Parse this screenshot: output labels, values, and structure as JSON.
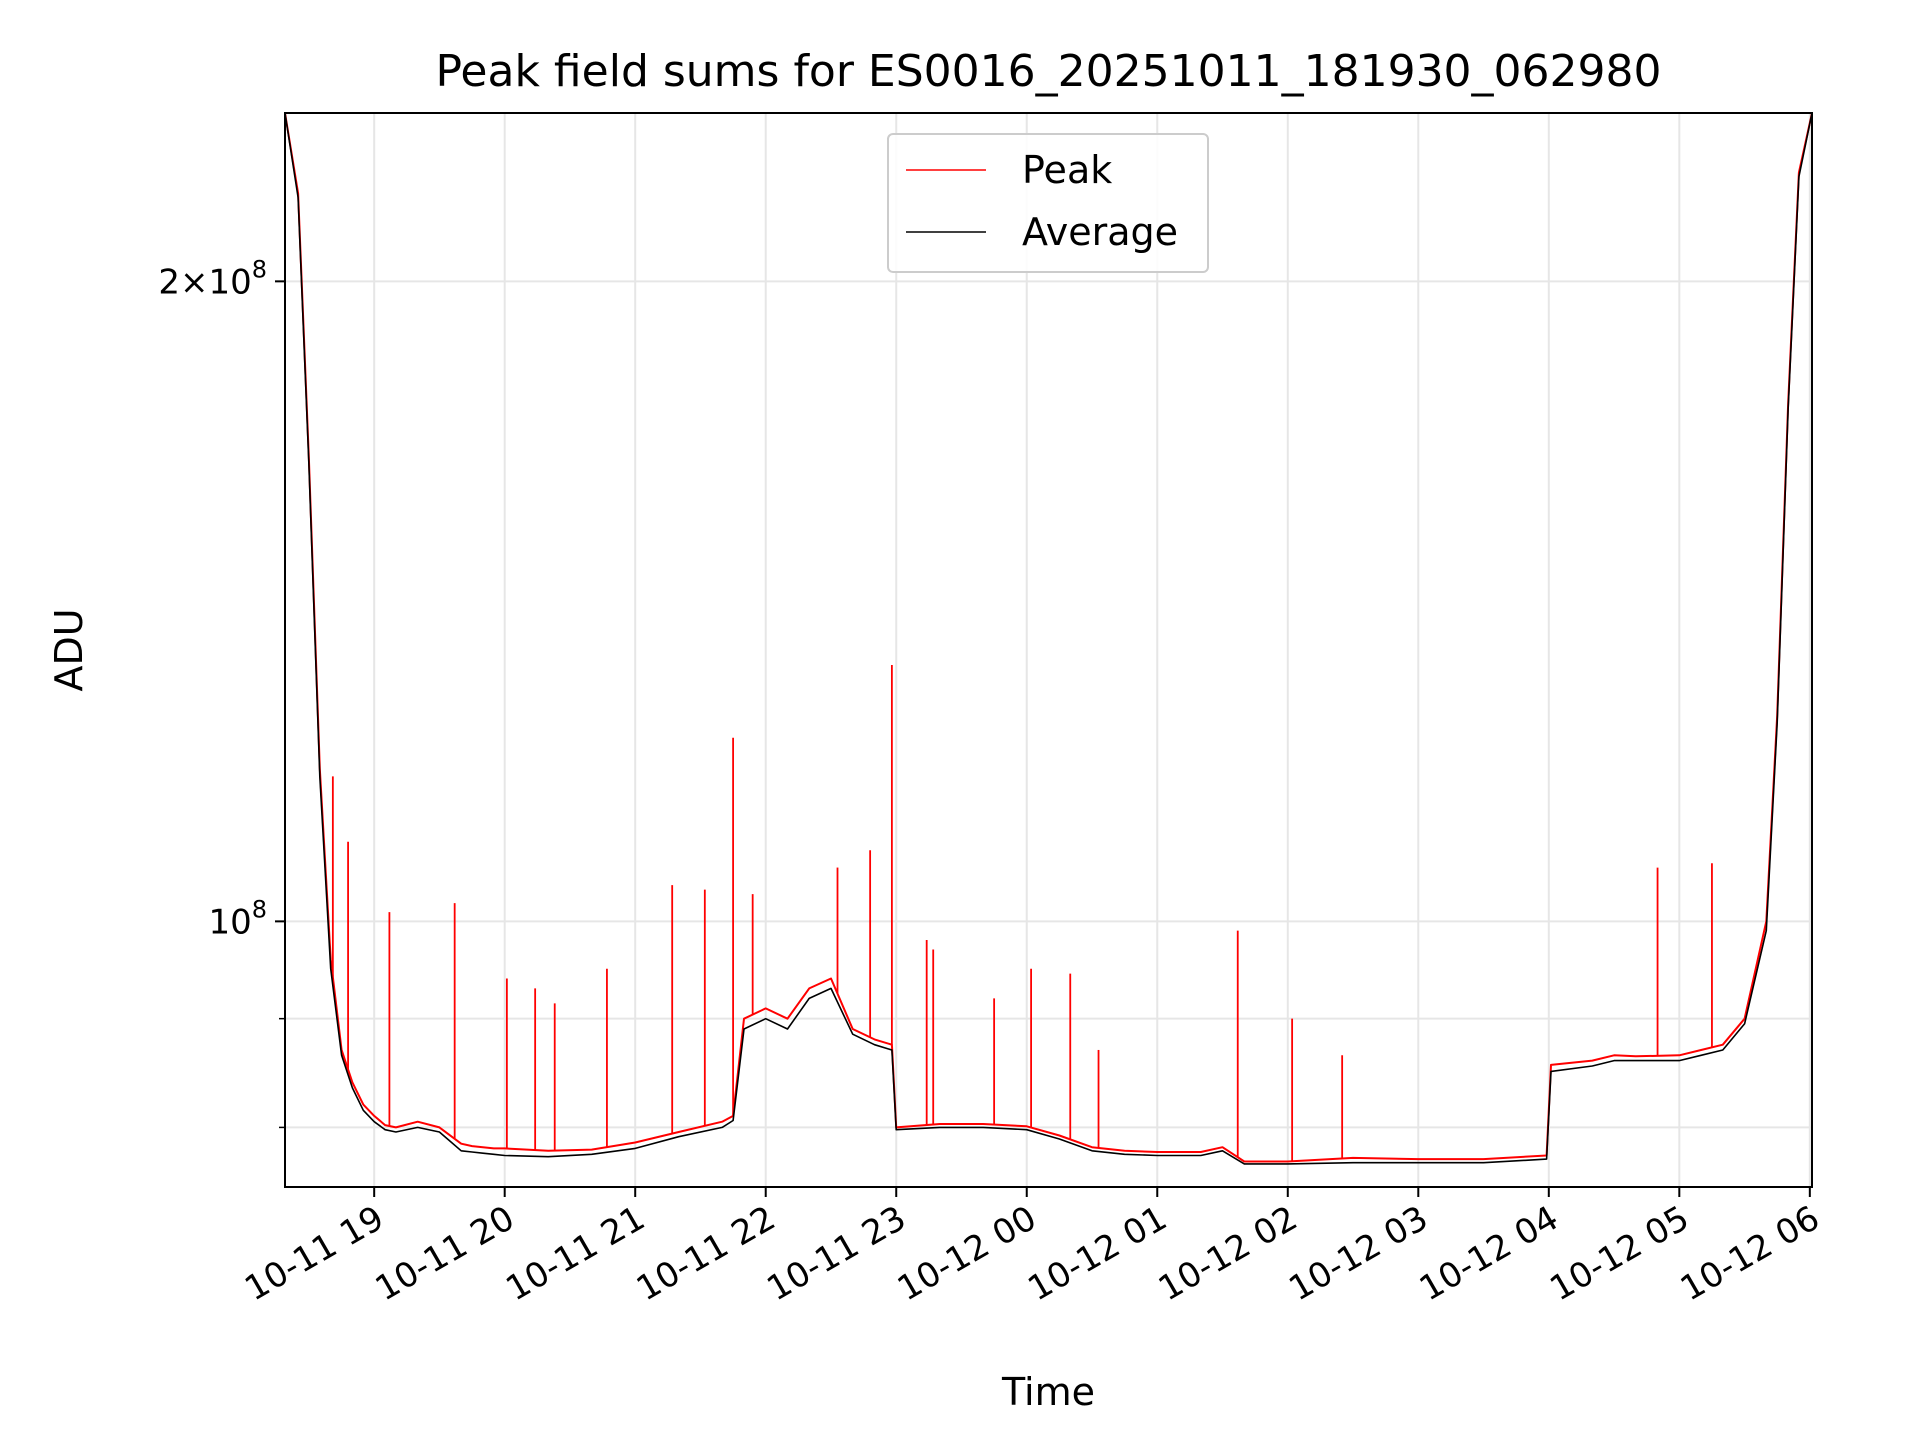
{
  "chart_data": {
    "type": "line",
    "title": "Peak field sums for ES0016_20251011_181930_062980",
    "xlabel": "Time",
    "ylabel": "ADU",
    "yscale": "log",
    "grid": true,
    "legend_position": "upper-center",
    "x_ticks": [
      "10-11 19",
      "10-11 20",
      "10-11 21",
      "10-11 22",
      "10-11 23",
      "10-12 00",
      "10-12 01",
      "10-12 02",
      "10-12 03",
      "10-12 04",
      "10-12 05",
      "10-12 06"
    ],
    "y_ticks": [
      {
        "value": 100000000,
        "base": "10",
        "exp": "8",
        "prefix": ""
      },
      {
        "value": 200000000,
        "base": "10",
        "exp": "8",
        "prefix": "2×"
      }
    ],
    "xlim": [
      "2025-10-11 18:19",
      "2025-10-12 06:01"
    ],
    "ylim": [
      75000000,
      240000000
    ],
    "series": [
      {
        "name": "Peak",
        "color": "#ff0000",
        "x": [
          "2025-10-11 18:19",
          "2025-10-11 18:25",
          "2025-10-11 18:30",
          "2025-10-11 18:35",
          "2025-10-11 18:40",
          "2025-10-11 18:45",
          "2025-10-11 18:50",
          "2025-10-11 18:55",
          "2025-10-11 19:00",
          "2025-10-11 19:05",
          "2025-10-11 19:10",
          "2025-10-11 19:20",
          "2025-10-11 19:30",
          "2025-10-11 19:40",
          "2025-10-11 19:45",
          "2025-10-11 19:50",
          "2025-10-11 19:55",
          "2025-10-11 20:00",
          "2025-10-11 20:20",
          "2025-10-11 20:40",
          "2025-10-11 21:00",
          "2025-10-11 21:20",
          "2025-10-11 21:40",
          "2025-10-11 21:45",
          "2025-10-11 21:50",
          "2025-10-11 22:00",
          "2025-10-11 22:10",
          "2025-10-11 22:20",
          "2025-10-11 22:30",
          "2025-10-11 22:40",
          "2025-10-11 22:50",
          "2025-10-11 22:58",
          "2025-10-11 23:00",
          "2025-10-11 23:20",
          "2025-10-11 23:40",
          "2025-10-12 00:00",
          "2025-10-12 00:15",
          "2025-10-12 00:30",
          "2025-10-12 00:45",
          "2025-10-12 01:00",
          "2025-10-12 01:20",
          "2025-10-12 01:30",
          "2025-10-12 01:40",
          "2025-10-12 02:00",
          "2025-10-12 02:30",
          "2025-10-12 03:00",
          "2025-10-12 03:30",
          "2025-10-12 03:59",
          "2025-10-12 04:01",
          "2025-10-12 04:20",
          "2025-10-12 04:30",
          "2025-10-12 04:40",
          "2025-10-12 05:00",
          "2025-10-12 05:10",
          "2025-10-12 05:20",
          "2025-10-12 05:30",
          "2025-10-12 05:40",
          "2025-10-12 05:45",
          "2025-10-12 05:50",
          "2025-10-12 05:55",
          "2025-10-12 06:01"
        ],
        "y": [
          240000000,
          220000000,
          165000000,
          118000000,
          96000000,
          87000000,
          84000000,
          82000000,
          81000000,
          80200000,
          80000000,
          80500000,
          80000000,
          78600000,
          78400000,
          78300000,
          78200000,
          78200000,
          78000000,
          78100000,
          78700000,
          79600000,
          80500000,
          81000000,
          90000000,
          91000000,
          90000000,
          93000000,
          94000000,
          89000000,
          88000000,
          87500000,
          80000000,
          80300000,
          80300000,
          80100000,
          79300000,
          78300000,
          78000000,
          77900000,
          77900000,
          78300000,
          77100000,
          77100000,
          77400000,
          77300000,
          77300000,
          77600000,
          85600000,
          86000000,
          86500000,
          86400000,
          86500000,
          87000000,
          87500000,
          90000000,
          100000000,
          125000000,
          175000000,
          225000000,
          240000000
        ],
        "spikes": [
          {
            "x": "2025-10-11 18:41",
            "y": 117000000
          },
          {
            "x": "2025-10-11 18:48",
            "y": 109000000
          },
          {
            "x": "2025-10-11 19:07",
            "y": 101000000
          },
          {
            "x": "2025-10-11 19:37",
            "y": 102000000
          },
          {
            "x": "2025-10-11 20:01",
            "y": 94000000
          },
          {
            "x": "2025-10-11 20:14",
            "y": 93000000
          },
          {
            "x": "2025-10-11 20:23",
            "y": 91500000
          },
          {
            "x": "2025-10-11 20:47",
            "y": 95000000
          },
          {
            "x": "2025-10-11 21:17",
            "y": 104000000
          },
          {
            "x": "2025-10-11 21:32",
            "y": 103500000
          },
          {
            "x": "2025-10-11 21:45",
            "y": 122000000
          },
          {
            "x": "2025-10-11 21:54",
            "y": 103000000
          },
          {
            "x": "2025-10-11 22:33",
            "y": 106000000
          },
          {
            "x": "2025-10-11 22:48",
            "y": 108000000
          },
          {
            "x": "2025-10-11 22:58",
            "y": 132000000
          },
          {
            "x": "2025-10-11 23:14",
            "y": 98000000
          },
          {
            "x": "2025-10-11 23:17",
            "y": 97000000
          },
          {
            "x": "2025-10-11 23:45",
            "y": 92000000
          },
          {
            "x": "2025-10-12 00:02",
            "y": 95000000
          },
          {
            "x": "2025-10-12 00:20",
            "y": 94500000
          },
          {
            "x": "2025-10-12 00:33",
            "y": 87000000
          },
          {
            "x": "2025-10-12 01:37",
            "y": 99000000
          },
          {
            "x": "2025-10-12 02:02",
            "y": 90000000
          },
          {
            "x": "2025-10-12 02:25",
            "y": 86500000
          },
          {
            "x": "2025-10-12 04:50",
            "y": 106000000
          },
          {
            "x": "2025-10-12 05:15",
            "y": 106500000
          }
        ]
      },
      {
        "name": "Average",
        "color": "#000000",
        "x": [
          "2025-10-11 18:19",
          "2025-10-11 18:25",
          "2025-10-11 18:30",
          "2025-10-11 18:35",
          "2025-10-11 18:40",
          "2025-10-11 18:45",
          "2025-10-11 18:50",
          "2025-10-11 18:55",
          "2025-10-11 19:00",
          "2025-10-11 19:05",
          "2025-10-11 19:10",
          "2025-10-11 19:20",
          "2025-10-11 19:30",
          "2025-10-11 19:40",
          "2025-10-11 19:45",
          "2025-10-11 19:50",
          "2025-10-11 19:55",
          "2025-10-11 20:00",
          "2025-10-11 20:20",
          "2025-10-11 20:40",
          "2025-10-11 21:00",
          "2025-10-11 21:20",
          "2025-10-11 21:40",
          "2025-10-11 21:45",
          "2025-10-11 21:50",
          "2025-10-11 22:00",
          "2025-10-11 22:10",
          "2025-10-11 22:20",
          "2025-10-11 22:30",
          "2025-10-11 22:40",
          "2025-10-11 22:50",
          "2025-10-11 22:58",
          "2025-10-11 23:00",
          "2025-10-11 23:20",
          "2025-10-11 23:40",
          "2025-10-12 00:00",
          "2025-10-12 00:15",
          "2025-10-12 00:30",
          "2025-10-12 00:45",
          "2025-10-12 01:00",
          "2025-10-12 01:20",
          "2025-10-12 01:30",
          "2025-10-12 01:40",
          "2025-10-12 02:00",
          "2025-10-12 02:30",
          "2025-10-12 03:00",
          "2025-10-12 03:30",
          "2025-10-12 03:59",
          "2025-10-12 04:01",
          "2025-10-12 04:20",
          "2025-10-12 04:30",
          "2025-10-12 04:40",
          "2025-10-12 05:00",
          "2025-10-12 05:10",
          "2025-10-12 05:20",
          "2025-10-12 05:30",
          "2025-10-12 05:40",
          "2025-10-12 05:45",
          "2025-10-12 05:50",
          "2025-10-12 05:55",
          "2025-10-12 06:01"
        ],
        "y": [
          240000000,
          219000000,
          164000000,
          117000000,
          95000000,
          86500000,
          83500000,
          81500000,
          80500000,
          79800000,
          79600000,
          80000000,
          79600000,
          78000000,
          77900000,
          77800000,
          77700000,
          77600000,
          77500000,
          77700000,
          78200000,
          79200000,
          80000000,
          80600000,
          89000000,
          90000000,
          89000000,
          92000000,
          93000000,
          88500000,
          87500000,
          87000000,
          79800000,
          80000000,
          80000000,
          79800000,
          79000000,
          78000000,
          77700000,
          77600000,
          77600000,
          78000000,
          76900000,
          76900000,
          77000000,
          77000000,
          77000000,
          77300000,
          85000000,
          85500000,
          86000000,
          86000000,
          86000000,
          86500000,
          87000000,
          89500000,
          99000000,
          124000000,
          174000000,
          224000000,
          240000000
        ]
      }
    ]
  }
}
